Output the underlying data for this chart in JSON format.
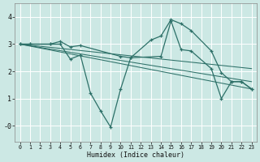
{
  "bg_color": "#cce8e4",
  "grid_color": "#b8d8d4",
  "line_color": "#2d7068",
  "xlabel": "Humidex (Indice chaleur)",
  "xlim": [
    -0.5,
    23.5
  ],
  "ylim": [
    -0.6,
    4.5
  ],
  "yticks": [
    0,
    1,
    2,
    3,
    4
  ],
  "ytick_labels": [
    "-0",
    "1",
    "2",
    "3",
    "4"
  ],
  "xticks": [
    0,
    1,
    2,
    3,
    4,
    5,
    6,
    7,
    8,
    9,
    10,
    11,
    12,
    13,
    14,
    15,
    16,
    17,
    18,
    19,
    20,
    21,
    22,
    23
  ],
  "line1": {
    "x": [
      0,
      1,
      3,
      4,
      5,
      6,
      10,
      11,
      13,
      14,
      15,
      16,
      17,
      19,
      20,
      21,
      22,
      23
    ],
    "y": [
      3.0,
      3.0,
      3.0,
      3.1,
      2.9,
      2.95,
      2.55,
      2.5,
      3.15,
      3.3,
      3.9,
      3.75,
      3.5,
      2.75,
      1.95,
      1.62,
      1.62,
      1.35
    ]
  },
  "line2": {
    "x": [
      0,
      1,
      3,
      4,
      5,
      6,
      7,
      8,
      9,
      10,
      11,
      14,
      15,
      16,
      17,
      19,
      20,
      21,
      22,
      23
    ],
    "y": [
      3.0,
      3.0,
      3.0,
      3.0,
      2.45,
      2.6,
      1.2,
      0.55,
      -0.05,
      1.35,
      2.5,
      2.55,
      3.85,
      2.8,
      2.75,
      2.1,
      1.0,
      1.62,
      1.62,
      1.35
    ]
  },
  "straight_lines": [
    {
      "x": [
        0,
        23
      ],
      "y": [
        3.0,
        2.1
      ]
    },
    {
      "x": [
        0,
        23
      ],
      "y": [
        3.0,
        1.62
      ]
    },
    {
      "x": [
        0,
        23
      ],
      "y": [
        3.0,
        1.35
      ]
    }
  ],
  "figsize": [
    3.2,
    2.0
  ],
  "dpi": 100
}
